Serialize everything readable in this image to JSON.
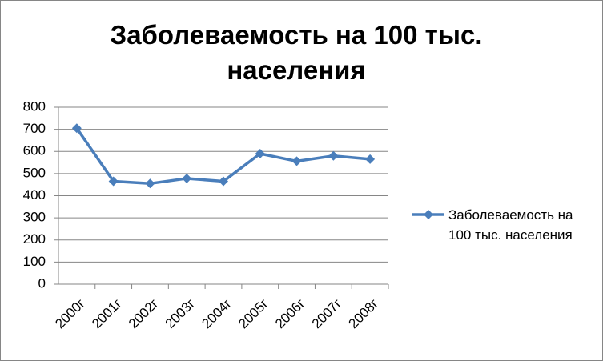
{
  "chart_data": {
    "type": "line",
    "title": "Заболеваемость на 100 тыс. населения",
    "categories": [
      "2000г",
      "2001г",
      "2002г",
      "2003г",
      "2004г",
      "2005г",
      "2006г",
      "2007г",
      "2008г"
    ],
    "series": [
      {
        "name": "Заболеваемость на 100 тыс. населения",
        "color": "#4a7ebb",
        "values": [
          705,
          465,
          455,
          478,
          465,
          590,
          556,
          580,
          565
        ]
      }
    ],
    "ylim": [
      0,
      800
    ],
    "yticks": [
      0,
      100,
      200,
      300,
      400,
      500,
      600,
      700,
      800
    ],
    "grid": true,
    "legend": "right"
  }
}
